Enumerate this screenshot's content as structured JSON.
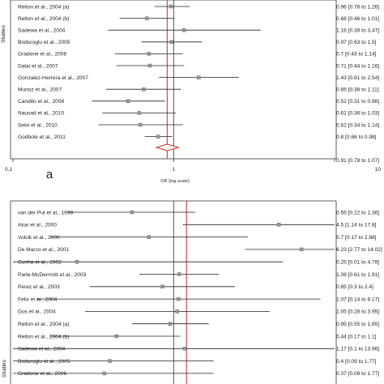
{
  "chart_data": [
    {
      "type": "forest",
      "panel_label": "a",
      "ylabel": "Studies",
      "xlabel": "OR (log scale)",
      "x_scale": "log",
      "xlim": [
        0.1,
        10
      ],
      "x_ticks": [
        {
          "value": 0.1,
          "label": "0.1"
        },
        {
          "value": 1,
          "label": "1"
        },
        {
          "value": 10,
          "label": "10"
        }
      ],
      "reference_line": 1,
      "pooled_line": 0.91,
      "studies": [
        {
          "name": "Relton et al., 2004 (a)",
          "or": 0.96,
          "lo": 0.76,
          "hi": 1.26,
          "ci_text": "0.96 [0.76 to 1.26]"
        },
        {
          "name": "Relton et al., 2004 (b)",
          "or": 0.68,
          "lo": 0.46,
          "hi": 1.01,
          "ci_text": "0.68 [0.46 to 1.01]"
        },
        {
          "name": "Sadewa et al., 2004",
          "or": 1.16,
          "lo": 0.39,
          "hi": 3.47,
          "ci_text": "1.16 [0.39 to 3.47]"
        },
        {
          "name": "Boduroglu et al., 2005",
          "or": 0.97,
          "lo": 0.63,
          "hi": 1.5,
          "ci_text": "0.97 [0.63 to 1.5]"
        },
        {
          "name": "Gradone et al., 2006",
          "or": 0.7,
          "lo": 0.43,
          "hi": 1.14,
          "ci_text": "0.7 [0.43 to 1.14]"
        },
        {
          "name": "Dalal et al., 2007",
          "or": 0.71,
          "lo": 0.44,
          "hi": 1.16,
          "ci_text": "0.71 [0.44 to 1.16]"
        },
        {
          "name": "Gonzalez-Herrera et al., 2007",
          "or": 1.43,
          "lo": 0.81,
          "hi": 2.54,
          "ci_text": "1.43 [0.81 to 2.54]"
        },
        {
          "name": "Munoz et al., 2007",
          "or": 0.65,
          "lo": 0.38,
          "hi": 1.11,
          "ci_text": "0.65 [0.38 to 1.11]"
        },
        {
          "name": "Candito et al., 2008",
          "or": 0.52,
          "lo": 0.31,
          "hi": 0.88,
          "ci_text": "0.52 [0.31 to 0.88]"
        },
        {
          "name": "Nausad et al., 2010",
          "or": 0.61,
          "lo": 0.36,
          "hi": 1.03,
          "ci_text": "0.61 [0.36 to 1.03]"
        },
        {
          "name": "Selvi et al., 2010",
          "or": 0.62,
          "lo": 0.34,
          "hi": 1.14,
          "ci_text": "0.62 [0.34 to 1.14]"
        },
        {
          "name": "Godbole et al., 2011",
          "or": 0.8,
          "lo": 0.66,
          "hi": 0.98,
          "ci_text": "0.8 [0.66 to 0.98]"
        }
      ],
      "pooled": {
        "or": 0.91,
        "lo": 0.78,
        "hi": 1.07,
        "ci_text": "0.91 [0.78 to 1.07]"
      }
    },
    {
      "type": "forest",
      "ylabel": "Studies",
      "x_scale": "log",
      "xlim": [
        0.1,
        10
      ],
      "reference_line": 1,
      "pooled_line": 1.2,
      "studies": [
        {
          "name": "van der Put et al., 1998",
          "or": 0.55,
          "lo": 0.22,
          "hi": 1.36,
          "ci_text": "0.55 [0.22 to 1.36]"
        },
        {
          "name": "Akar et al., 2000",
          "or": 4.5,
          "lo": 1.14,
          "hi": 17.8,
          "ci_text": "4.5 [1.14 to 17.8]"
        },
        {
          "name": "Volcik et al., 2000",
          "or": 0.7,
          "lo": 0.17,
          "hi": 2.88,
          "ci_text": "0.7 [0.17 to 2.88]"
        },
        {
          "name": "De Marco et al., 2001",
          "or": 6.23,
          "lo": 2.77,
          "hi": 14.02,
          "ci_text": "6.23 [2.77 to 14.02]"
        },
        {
          "name": "Cunha et al., 2002",
          "or": 0.25,
          "lo": 0.01,
          "hi": 4.78,
          "ci_text": "0.25 [0.01 to 4.78]"
        },
        {
          "name": "Parle-McDermott et al., 2003",
          "or": 1.08,
          "lo": 0.61,
          "hi": 1.91,
          "ci_text": "1.08 [0.61 to 1.91]"
        },
        {
          "name": "Perez et al., 2003",
          "or": 0.85,
          "lo": 0.3,
          "hi": 2.4,
          "ci_text": "0.85 [0.3 to 2.4]"
        },
        {
          "name": "Felix et al., 2004",
          "or": 1.07,
          "lo": 0.14,
          "hi": 8.17,
          "ci_text": "1.07 [0.14 to 8.17]"
        },
        {
          "name": "Gos et al., 2004",
          "or": 1.05,
          "lo": 0.28,
          "hi": 3.95,
          "ci_text": "1.05 [0.28 to 3.95]"
        },
        {
          "name": "Relton et al., 2004 (a)",
          "or": 0.95,
          "lo": 0.55,
          "hi": 1.65,
          "ci_text": "0.95 [0.55 to 1.65]"
        },
        {
          "name": "Relton et al., 2004 (b)",
          "or": 0.44,
          "lo": 0.17,
          "hi": 1.1,
          "ci_text": "0.44 [0.17 to 1.1]"
        },
        {
          "name": "Sadewa et al., 2004",
          "or": 1.17,
          "lo": 0.1,
          "hi": 13.96,
          "ci_text": "1.17 [0.1 to 13.96]"
        },
        {
          "name": "Boduroglu et al., 2005",
          "or": 0.4,
          "lo": 0.09,
          "hi": 1.77,
          "ci_text": "0.4 [0.09 to 1.77]"
        },
        {
          "name": "Gradone et al., 2006",
          "or": 0.37,
          "lo": 0.08,
          "hi": 1.77,
          "ci_text": "0.37 [0.08 to 1.77]"
        }
      ]
    }
  ]
}
